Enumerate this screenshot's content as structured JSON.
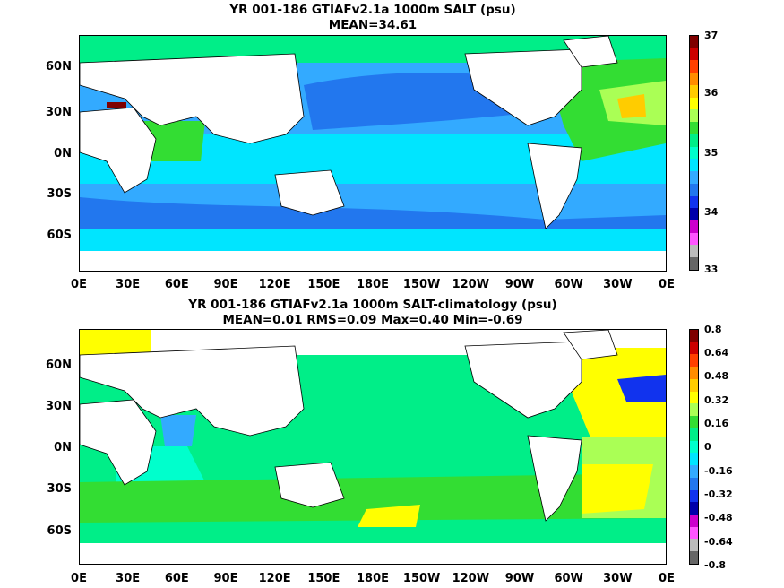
{
  "chart_data": [
    {
      "type": "heatmap",
      "title": "YR 001-186 GTIAFv2.1a 1000m SALT (psu)",
      "subtitle": "MEAN=34.61",
      "y_ticks": [
        "60N",
        "30N",
        "0N",
        "30S",
        "60S"
      ],
      "x_ticks": [
        "0E",
        "30E",
        "60E",
        "90E",
        "120E",
        "150E",
        "180E",
        "150W",
        "120W",
        "90W",
        "60W",
        "30W",
        "0E"
      ],
      "colorbar_ticks": [
        "37",
        "36",
        "35",
        "34",
        "33"
      ],
      "colorbar_colors": [
        "#7f0000",
        "#cc0000",
        "#ff4000",
        "#ff8c00",
        "#ffcc00",
        "#ffff00",
        "#aaff55",
        "#33dd33",
        "#00ee88",
        "#00ffcc",
        "#00e5ff",
        "#33aaff",
        "#2277ee",
        "#1133ee",
        "#0000aa",
        "#cc00cc",
        "#ff55ff",
        "#bbbbbb",
        "#666666"
      ],
      "colorbar_range": [
        33,
        37
      ]
    },
    {
      "type": "heatmap",
      "title": "YR 001-186 GTIAFv2.1a 1000m SALT-climatology (psu)",
      "subtitle": "MEAN=0.01   RMS=0.09   Max=0.40   Min=-0.69",
      "y_ticks": [
        "60N",
        "30N",
        "0N",
        "30S",
        "60S"
      ],
      "x_ticks": [
        "0E",
        "30E",
        "60E",
        "90E",
        "120E",
        "150E",
        "180E",
        "150W",
        "120W",
        "90W",
        "60W",
        "30W",
        "0E"
      ],
      "colorbar_ticks": [
        "0.8",
        "0.64",
        "0.48",
        "0.32",
        "0.16",
        "0",
        "-0.16",
        "-0.32",
        "-0.48",
        "-0.64",
        "-0.8"
      ],
      "colorbar_colors": [
        "#7f0000",
        "#cc0000",
        "#ff4000",
        "#ff8c00",
        "#ffcc00",
        "#ffff00",
        "#aaff55",
        "#33dd33",
        "#00ee88",
        "#00ffcc",
        "#00e5ff",
        "#33aaff",
        "#2277ee",
        "#1133ee",
        "#0000aa",
        "#cc00cc",
        "#ff55ff",
        "#bbbbbb",
        "#666666"
      ],
      "colorbar_range": [
        -0.8,
        0.8
      ]
    }
  ]
}
